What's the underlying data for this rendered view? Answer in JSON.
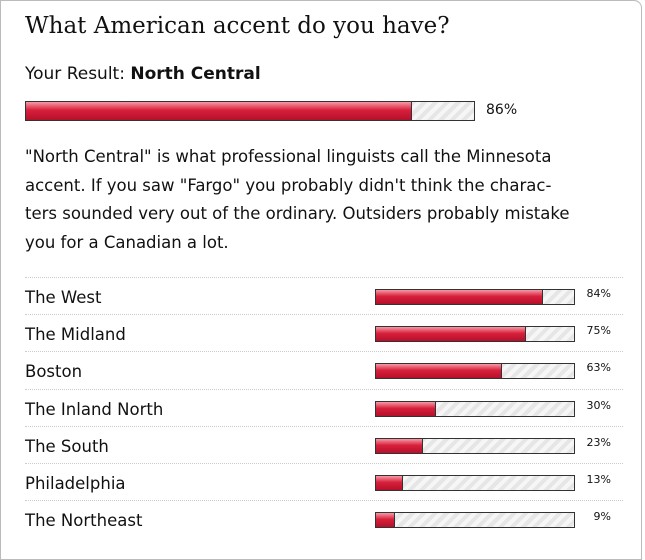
{
  "title": "What American accent do you have?",
  "result": {
    "label": "Your Result:",
    "name": "North Central",
    "value": 86,
    "value_label": "86%"
  },
  "description": [
    "\"North Central\" is what professional linguists call the Minnesota",
    "accent. If you saw \"Fargo\" you probably didn't think the charac-",
    "ters sounded very out of the ordinary. Outsiders probably mistake",
    "you for a Canadian a lot."
  ],
  "others": [
    {
      "name": "The West",
      "value": 84,
      "value_label": "84%"
    },
    {
      "name": "The Midland",
      "value": 75,
      "value_label": "75%"
    },
    {
      "name": "Boston",
      "value": 63,
      "value_label": "63%"
    },
    {
      "name": "The Inland North",
      "value": 30,
      "value_label": "30%"
    },
    {
      "name": "The South",
      "value": 23,
      "value_label": "23%"
    },
    {
      "name": "Philadelphia",
      "value": 13,
      "value_label": "13%"
    },
    {
      "name": "The Northeast",
      "value": 9,
      "value_label": "9%"
    }
  ]
}
